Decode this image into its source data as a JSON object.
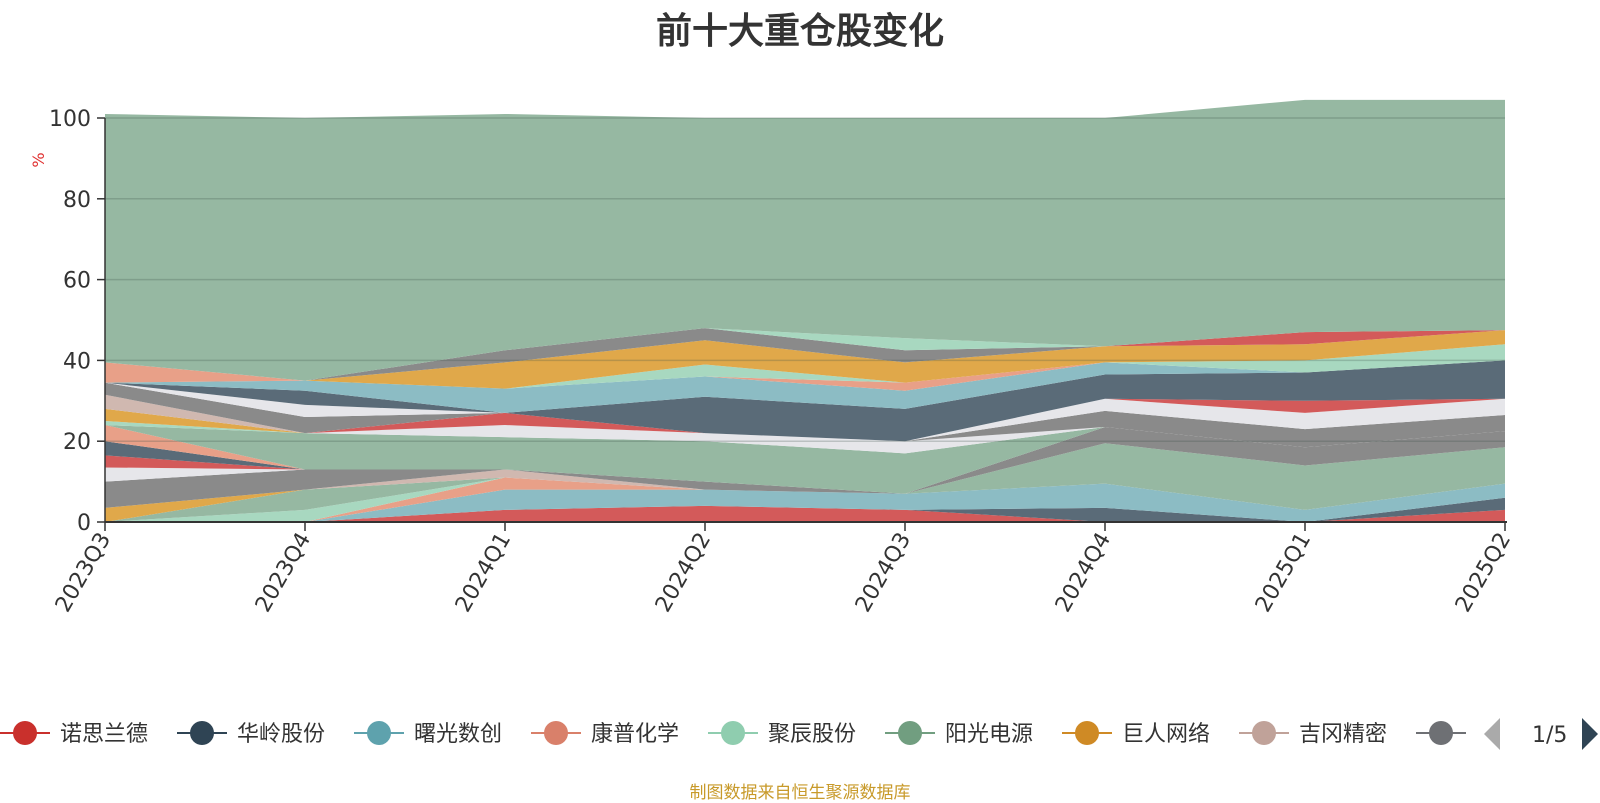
{
  "chart_data": {
    "type": "area",
    "stacked": true,
    "title": "前十大重仓股变化",
    "ylabel": "%",
    "ylim": [
      0,
      100
    ],
    "yticks": [
      0,
      20,
      40,
      60,
      80,
      100
    ],
    "grid": true,
    "categories": [
      "2023Q3",
      "2023Q4",
      "2024Q1",
      "2024Q2",
      "2024Q3",
      "2024Q4",
      "2025Q1",
      "2025Q2"
    ],
    "series": [
      {
        "name": "诺思兰德",
        "color": "#d35a5a",
        "values": [
          0,
          0,
          3,
          4,
          3,
          0,
          0,
          3
        ]
      },
      {
        "name": "华岭股份",
        "color": "#5a6b78",
        "values": [
          0,
          0,
          0,
          0,
          0,
          3.5,
          0,
          3
        ]
      },
      {
        "name": "曙光数创",
        "color": "#8cbcc4",
        "values": [
          0,
          0,
          5,
          4,
          4,
          6,
          3,
          3.5
        ]
      },
      {
        "name": "康普化学",
        "color": "#e8a088",
        "values": [
          0,
          0,
          3,
          0,
          0,
          0,
          0,
          0
        ]
      },
      {
        "name": "聚辰股份",
        "color": "#a8d8c0",
        "values": [
          0,
          3,
          0,
          0,
          0,
          0,
          0,
          0
        ]
      },
      {
        "name": "阳光电源",
        "color": "#96b8a2",
        "values": [
          0,
          5,
          0,
          0,
          0,
          10,
          11,
          9
        ]
      },
      {
        "name": "巨人网络",
        "color": "#e0a84a",
        "values": [
          3.5,
          0,
          0,
          0,
          0,
          0,
          0,
          0
        ]
      },
      {
        "name": "吉冈精密",
        "color": "#d0b8b0",
        "values": [
          0,
          0,
          2,
          0,
          0,
          0,
          0,
          0
        ]
      },
      {
        "name": "",
        "color": "#8a8a8a",
        "values": [
          6.5,
          5,
          0,
          2,
          0,
          4,
          4.5,
          4
        ]
      },
      {
        "name": "",
        "color": "#e6e6ea",
        "values": [
          3.5,
          0,
          0,
          0,
          0,
          0,
          0,
          0
        ]
      },
      {
        "name": "",
        "color": "#d35a5a",
        "values": [
          3,
          0,
          0,
          0,
          0,
          0,
          0,
          0
        ]
      },
      {
        "name": "",
        "color": "#5a6b78",
        "values": [
          3.5,
          0,
          0,
          0,
          0,
          0,
          0,
          0
        ]
      },
      {
        "name": "",
        "color": "#e8a088",
        "values": [
          4,
          0,
          0,
          0,
          0,
          0,
          0,
          0
        ]
      },
      {
        "name": "",
        "color": "#96b8a2",
        "values": [
          0,
          9,
          8,
          10,
          10,
          0,
          0,
          0
        ]
      },
      {
        "name": "",
        "color": "#a8d8c0",
        "values": [
          1,
          0,
          0,
          0,
          0,
          0,
          0,
          0
        ]
      },
      {
        "name": "",
        "color": "#e6e6ea",
        "values": [
          0,
          0,
          3,
          2,
          3,
          0,
          0,
          0
        ]
      },
      {
        "name": "",
        "color": "#8a8a8a",
        "values": [
          0,
          0,
          0,
          0,
          0,
          4,
          4.5,
          4
        ]
      },
      {
        "name": "",
        "color": "#e6e6ea",
        "values": [
          0,
          0,
          0,
          0,
          0,
          3,
          4,
          4
        ]
      },
      {
        "name": "",
        "color": "#e0a84a",
        "values": [
          3,
          0,
          0,
          0,
          0,
          0,
          0,
          0
        ]
      },
      {
        "name": "",
        "color": "#d0b8b0",
        "values": [
          3.5,
          0,
          0,
          0,
          0,
          0,
          0,
          0
        ]
      },
      {
        "name": "",
        "color": "#d35a5a",
        "values": [
          0,
          0,
          3,
          0,
          0,
          0,
          3,
          0
        ]
      },
      {
        "name": "",
        "color": "#5a6b78",
        "values": [
          0,
          0,
          0,
          9,
          8,
          6,
          7,
          9.5
        ]
      },
      {
        "name": "",
        "color": "#8a8a8a",
        "values": [
          3,
          4,
          0,
          0,
          0,
          0,
          0,
          0
        ]
      },
      {
        "name": "",
        "color": "#e6e6ea",
        "values": [
          0,
          3,
          0,
          0,
          0,
          0,
          0,
          0
        ]
      },
      {
        "name": "",
        "color": "#5a6b78",
        "values": [
          0,
          3.5,
          0,
          0,
          0,
          0,
          0,
          0
        ]
      },
      {
        "name": "",
        "color": "#8cbcc4",
        "values": [
          0,
          2.5,
          6,
          5,
          4.5,
          3,
          0,
          0
        ]
      },
      {
        "name": "",
        "color": "#e8a088",
        "values": [
          5,
          0,
          0,
          0,
          2,
          0,
          0,
          0
        ]
      },
      {
        "name": "",
        "color": "#a8d8c0",
        "values": [
          0,
          0,
          0,
          3,
          0,
          0,
          3,
          4
        ]
      },
      {
        "name": "",
        "color": "#e0a84a",
        "values": [
          0,
          0,
          6.5,
          6,
          5,
          4,
          4,
          3.5
        ]
      },
      {
        "name": "",
        "color": "#d35a5a",
        "values": [
          0,
          0,
          0,
          0,
          0,
          0,
          3,
          0
        ]
      },
      {
        "name": "",
        "color": "#8a8a8a",
        "values": [
          0,
          0,
          3,
          3,
          3,
          0,
          0,
          0
        ]
      },
      {
        "name": "",
        "color": "#a8d8c0",
        "values": [
          0,
          0,
          0,
          0,
          3,
          0,
          0,
          0
        ]
      },
      {
        "name": "",
        "color": "#96b8a2",
        "values": [
          61.5,
          65,
          58.5,
          52,
          54.5,
          56.5,
          57.5,
          57
        ]
      }
    ]
  },
  "legend": {
    "items": [
      {
        "label": "诺思兰德",
        "color": "#c9302c"
      },
      {
        "label": "华岭股份",
        "color": "#2f4454"
      },
      {
        "label": "曙光数创",
        "color": "#5ea2ad"
      },
      {
        "label": "康普化学",
        "color": "#d9806a"
      },
      {
        "label": "聚辰股份",
        "color": "#8fcdaf"
      },
      {
        "label": "阳光电源",
        "color": "#719e80"
      },
      {
        "label": "巨人网络",
        "color": "#cf8a25"
      },
      {
        "label": "吉冈精密",
        "color": "#c0a299"
      },
      {
        "label": "",
        "color": "#6e7074"
      }
    ],
    "page_indicator": "1/5",
    "prev_icon": "triangle-left-icon",
    "next_icon": "triangle-right-icon"
  },
  "footer": {
    "source": "制图数据来自恒生聚源数据库"
  }
}
